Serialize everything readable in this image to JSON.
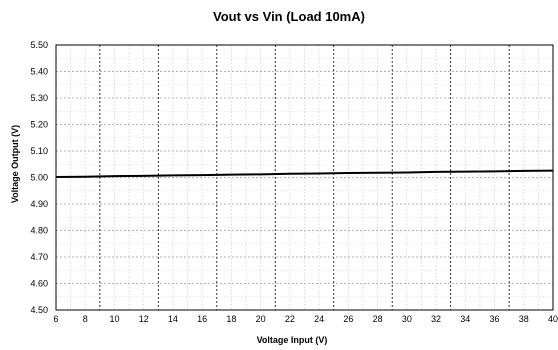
{
  "chart_data": {
    "type": "line",
    "title": "Vout vs Vin (Load 10mA)",
    "xlabel": "Voltage Input (V)",
    "ylabel": "Voltage Output (V)",
    "xlim": [
      6,
      40
    ],
    "ylim": [
      4.5,
      5.5
    ],
    "x_ticks": [
      "6",
      "8",
      "10",
      "12",
      "14",
      "16",
      "18",
      "20",
      "22",
      "24",
      "26",
      "28",
      "30",
      "32",
      "34",
      "36",
      "38",
      "40"
    ],
    "y_ticks": [
      "4.50",
      "4.60",
      "4.70",
      "4.80",
      "4.90",
      "5.00",
      "5.10",
      "5.20",
      "5.30",
      "5.40",
      "5.50"
    ],
    "grid": true,
    "legend": "none",
    "series": [
      {
        "x": [
          6,
          8,
          10,
          12,
          14,
          16,
          18,
          20,
          22,
          24,
          26,
          28,
          30,
          32,
          34,
          36,
          38,
          40
        ],
        "y": [
          5.002,
          5.003,
          5.005,
          5.006,
          5.008,
          5.009,
          5.011,
          5.012,
          5.014,
          5.015,
          5.017,
          5.018,
          5.019,
          5.021,
          5.022,
          5.023,
          5.025,
          5.026
        ],
        "color": "#000000"
      }
    ]
  }
}
